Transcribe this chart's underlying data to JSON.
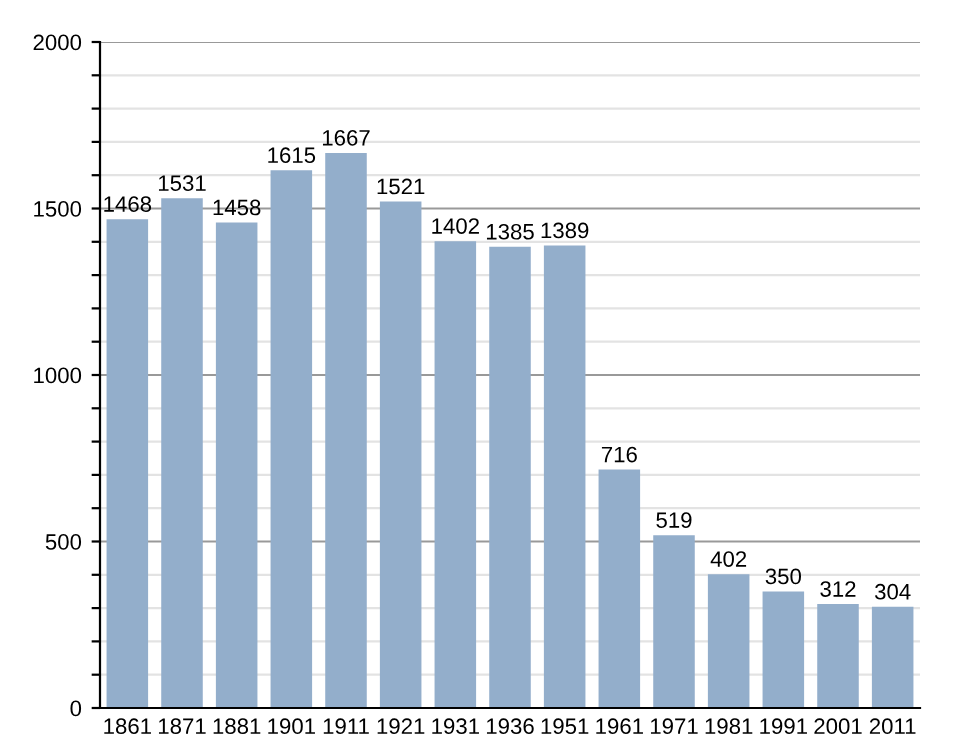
{
  "chart_data": {
    "type": "bar",
    "categories": [
      "1861",
      "1871",
      "1881",
      "1901",
      "1911",
      "1921",
      "1931",
      "1936",
      "1951",
      "1961",
      "1971",
      "1981",
      "1991",
      "2001",
      "2011"
    ],
    "values": [
      1468,
      1531,
      1458,
      1615,
      1667,
      1521,
      1402,
      1385,
      1389,
      716,
      519,
      402,
      350,
      312,
      304
    ],
    "color": "#93aecb",
    "ylim": [
      0,
      2000
    ],
    "yticks": [
      0,
      {
        "value": 100,
        "label": null
      },
      {
        "value": 200,
        "label": null
      },
      {
        "value": 300,
        "label": null
      },
      {
        "value": 400,
        "label": null
      },
      500,
      {
        "value": 600,
        "label": null
      },
      {
        "value": 700,
        "label": null
      },
      {
        "value": 800,
        "label": null
      },
      {
        "value": 900,
        "label": null
      },
      1000,
      {
        "value": 1100,
        "label": null
      },
      {
        "value": 1200,
        "label": null
      },
      {
        "value": 1300,
        "label": null
      },
      {
        "value": 1400,
        "label": null
      },
      1500,
      {
        "value": 1600,
        "label": null
      },
      {
        "value": 1700,
        "label": null
      },
      {
        "value": 1800,
        "label": null
      },
      {
        "value": 1900,
        "label": null
      },
      2000
    ],
    "grid": "y",
    "data_labels": true
  }
}
